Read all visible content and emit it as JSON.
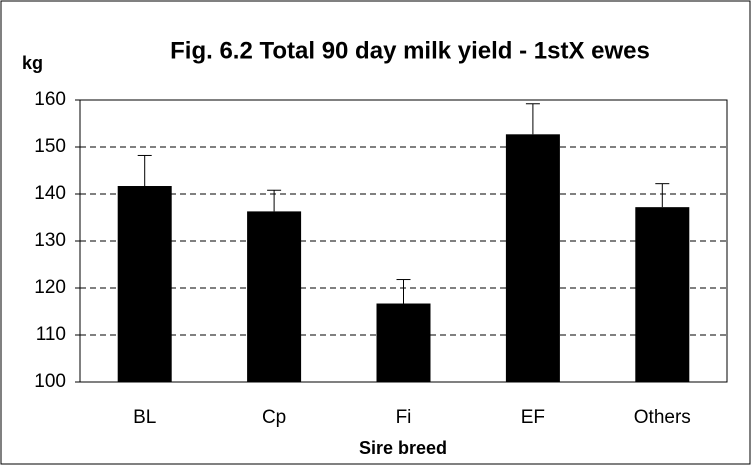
{
  "chart_data": {
    "type": "bar",
    "title": "Fig. 6.2 Total 90 day milk yield - 1stX ewes",
    "y_label": "kg",
    "x_label": "Sire breed",
    "categories": [
      "BL",
      "Cp",
      "Fi",
      "EF",
      "Others"
    ],
    "values": [
      141.7,
      136.3,
      116.7,
      152.7,
      137.2
    ],
    "errors": [
      6.5,
      4.5,
      5.1,
      6.5,
      5.0
    ],
    "color": "#000000",
    "ylim": [
      100,
      160
    ],
    "yticks": [
      100,
      110,
      120,
      130,
      140,
      150,
      160
    ],
    "grid": true
  }
}
